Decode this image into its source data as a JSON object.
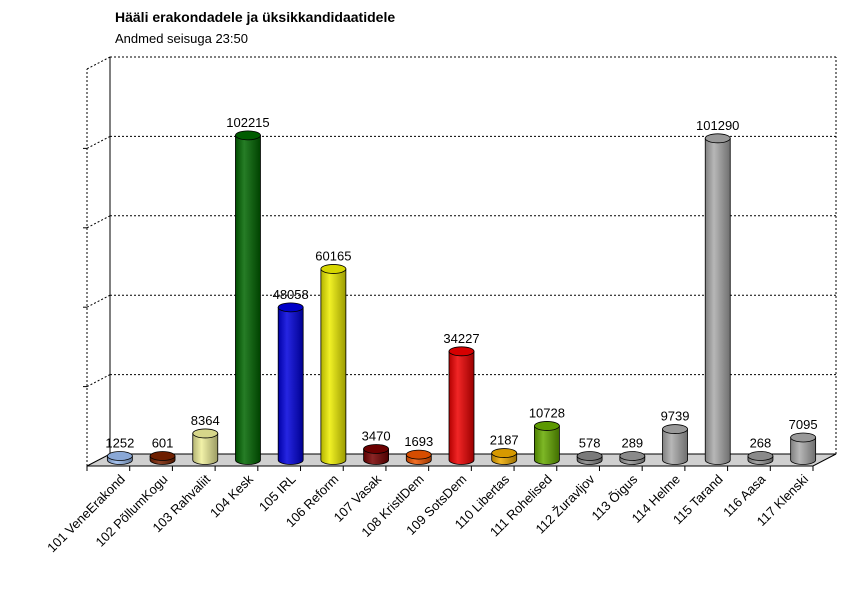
{
  "chart_data": {
    "type": "bar",
    "title": "Hääli erakondadele ja üksikkandidaatidele",
    "subtitle": "Andmed seisuga 23:50",
    "xlabel": "",
    "ylabel": "",
    "ylim": [
      0,
      125000
    ],
    "grid": true,
    "categories": [
      "101 VeneErakond",
      "102 PõllumKogu",
      "103 Rahvaliit",
      "104 Kesk",
      "105 IRL",
      "106 Reform",
      "107 Vasak",
      "108 KristlDem",
      "109 SotsDem",
      "110 Libertas",
      "111 Rohelised",
      "112 Žuravljov",
      "113 Õigus",
      "114 Helme",
      "115 Tarand",
      "116 Aasa",
      "117 Klenski"
    ],
    "values": [
      1252,
      601,
      8364,
      102215,
      48058,
      60165,
      3470,
      1693,
      34227,
      2187,
      10728,
      578,
      289,
      9739,
      101290,
      268,
      7095
    ],
    "colors": [
      "#99bbee",
      "#7a2200",
      "#eeee99",
      "#006600",
      "#0000dd",
      "#eeee00",
      "#770000",
      "#ee5500",
      "#ee0000",
      "#eeaa00",
      "#66aa00",
      "#888888",
      "#999999",
      "#aaaaaa",
      "#aaaaaa",
      "#999999",
      "#aaaaaa"
    ]
  }
}
